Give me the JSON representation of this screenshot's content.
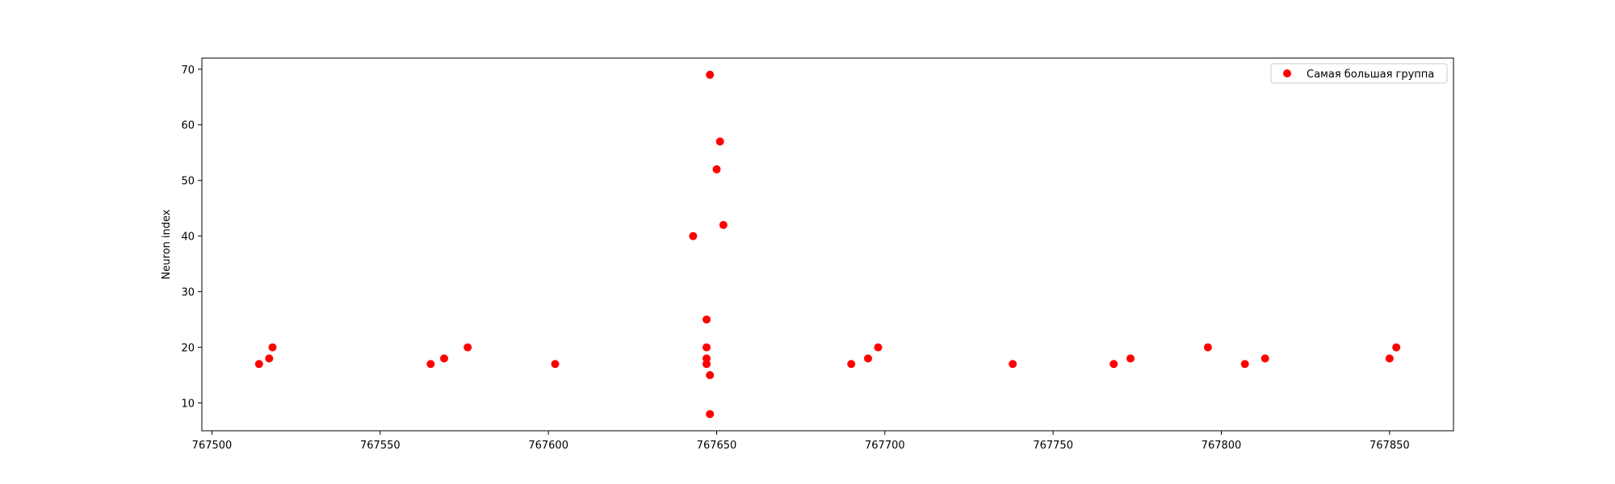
{
  "chart_data": {
    "type": "scatter",
    "title": "",
    "xlabel": "",
    "ylabel": "Neuron index",
    "xlim": [
      767497,
      767869
    ],
    "ylim": [
      5,
      72
    ],
    "xticks": [
      767500,
      767550,
      767600,
      767650,
      767700,
      767750,
      767800,
      767850
    ],
    "yticks": [
      10,
      20,
      30,
      40,
      50,
      60,
      70
    ],
    "grid": false,
    "legend_position": "top-right",
    "series": [
      {
        "name": "Самая большая группа",
        "color": "#ff0000",
        "marker": "circle",
        "points": [
          {
            "x": 767514,
            "y": 17
          },
          {
            "x": 767517,
            "y": 18
          },
          {
            "x": 767518,
            "y": 20
          },
          {
            "x": 767565,
            "y": 17
          },
          {
            "x": 767569,
            "y": 18
          },
          {
            "x": 767576,
            "y": 20
          },
          {
            "x": 767602,
            "y": 17
          },
          {
            "x": 767643,
            "y": 40
          },
          {
            "x": 767647,
            "y": 25
          },
          {
            "x": 767647,
            "y": 20
          },
          {
            "x": 767647,
            "y": 18
          },
          {
            "x": 767647,
            "y": 17
          },
          {
            "x": 767648,
            "y": 15
          },
          {
            "x": 767648,
            "y": 8
          },
          {
            "x": 767648,
            "y": 69
          },
          {
            "x": 767650,
            "y": 52
          },
          {
            "x": 767651,
            "y": 57
          },
          {
            "x": 767652,
            "y": 42
          },
          {
            "x": 767690,
            "y": 17
          },
          {
            "x": 767695,
            "y": 18
          },
          {
            "x": 767698,
            "y": 20
          },
          {
            "x": 767738,
            "y": 17
          },
          {
            "x": 767768,
            "y": 17
          },
          {
            "x": 767773,
            "y": 18
          },
          {
            "x": 767796,
            "y": 20
          },
          {
            "x": 767807,
            "y": 17
          },
          {
            "x": 767813,
            "y": 18
          },
          {
            "x": 767850,
            "y": 18
          },
          {
            "x": 767852,
            "y": 20
          }
        ]
      }
    ]
  }
}
